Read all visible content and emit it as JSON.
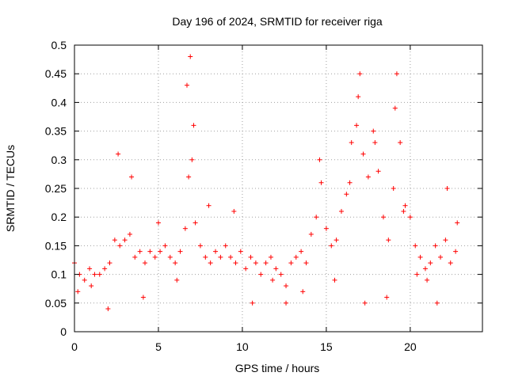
{
  "chart_data": {
    "type": "scatter",
    "title": "Day 196 of 2024, SRMTID for receiver riga",
    "xlabel": "GPS time / hours",
    "ylabel": "SRMTID / TECUs",
    "xlim": [
      0,
      24.3
    ],
    "ylim": [
      0,
      0.5
    ],
    "xticks": [
      0,
      5,
      10,
      15,
      20
    ],
    "xtick_labels": [
      "0",
      "5",
      "10",
      "15",
      "20"
    ],
    "yticks": [
      0,
      0.05,
      0.1,
      0.15,
      0.2,
      0.25,
      0.3,
      0.35,
      0.4,
      0.45,
      0.5
    ],
    "ytick_labels": [
      "0",
      "0.05",
      "0.1",
      "0.15",
      "0.2",
      "0.25",
      "0.3",
      "0.35",
      "0.4",
      "0.45",
      "0.5"
    ],
    "grid": true,
    "marker": "+",
    "marker_color": "#ff0000",
    "series": [
      {
        "name": "SRMTID",
        "x": [
          0.0,
          0.3,
          0.6,
          0.9,
          1.2,
          1.5,
          1.8,
          2.1,
          2.4,
          2.7,
          3.0,
          3.3,
          3.6,
          3.9,
          4.2,
          4.5,
          4.8,
          5.1,
          5.4,
          5.7,
          6.0,
          6.3,
          6.6,
          6.8,
          6.9,
          7.0,
          7.2,
          7.5,
          7.8,
          8.1,
          8.4,
          8.7,
          9.0,
          9.3,
          9.6,
          9.9,
          10.2,
          10.5,
          10.8,
          11.1,
          11.4,
          11.7,
          12.0,
          12.3,
          12.6,
          12.9,
          13.2,
          13.5,
          13.8,
          14.1,
          14.4,
          14.7,
          15.0,
          15.3,
          15.6,
          15.9,
          16.2,
          16.5,
          16.8,
          17.0,
          17.2,
          17.5,
          17.8,
          18.1,
          18.4,
          18.7,
          19.0,
          19.2,
          19.4,
          19.7,
          20.0,
          20.3,
          20.6,
          20.9,
          21.2,
          21.5,
          21.8,
          22.1,
          22.4,
          22.7,
          0.2,
          1.0,
          2.0,
          2.6,
          3.4,
          4.1,
          5.0,
          6.1,
          6.7,
          7.1,
          8.0,
          9.5,
          10.6,
          11.8,
          12.6,
          13.6,
          14.6,
          15.5,
          16.4,
          16.9,
          17.3,
          17.9,
          18.6,
          19.1,
          19.6,
          20.4,
          21.0,
          21.6,
          22.2,
          22.8
        ],
        "y": [
          0.12,
          0.1,
          0.09,
          0.11,
          0.1,
          0.1,
          0.11,
          0.12,
          0.16,
          0.15,
          0.16,
          0.17,
          0.13,
          0.14,
          0.12,
          0.14,
          0.13,
          0.14,
          0.15,
          0.13,
          0.12,
          0.14,
          0.18,
          0.27,
          0.48,
          0.3,
          0.19,
          0.15,
          0.13,
          0.12,
          0.14,
          0.13,
          0.15,
          0.13,
          0.12,
          0.14,
          0.11,
          0.13,
          0.12,
          0.1,
          0.12,
          0.13,
          0.11,
          0.1,
          0.08,
          0.12,
          0.13,
          0.14,
          0.12,
          0.17,
          0.2,
          0.26,
          0.18,
          0.15,
          0.16,
          0.21,
          0.24,
          0.33,
          0.36,
          0.45,
          0.31,
          0.27,
          0.35,
          0.28,
          0.2,
          0.16,
          0.25,
          0.45,
          0.33,
          0.22,
          0.2,
          0.15,
          0.13,
          0.11,
          0.12,
          0.15,
          0.13,
          0.16,
          0.12,
          0.14,
          0.07,
          0.08,
          0.04,
          0.31,
          0.27,
          0.06,
          0.19,
          0.09,
          0.43,
          0.36,
          0.22,
          0.21,
          0.05,
          0.09,
          0.05,
          0.07,
          0.3,
          0.09,
          0.26,
          0.41,
          0.05,
          0.33,
          0.06,
          0.39,
          0.21,
          0.1,
          0.09,
          0.05,
          0.25,
          0.19
        ]
      }
    ]
  }
}
